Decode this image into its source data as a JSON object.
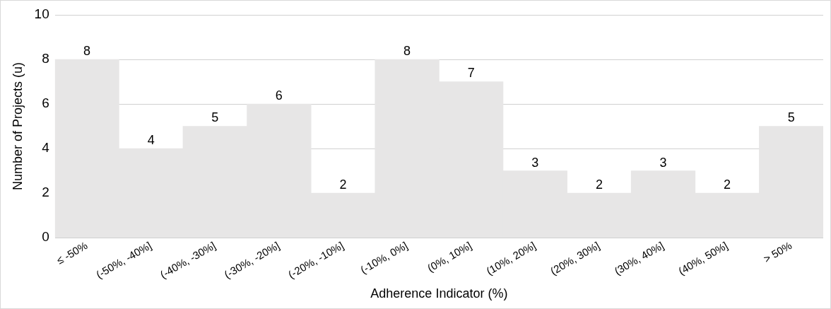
{
  "chart_data": {
    "type": "bar",
    "xlabel": "Adherence Indicator (%)",
    "ylabel": "Number of Projects (u)",
    "categories": [
      "≤ -50%",
      "(-50%, -40%]",
      "(-40%, -30%]",
      "(-30%, -20%]",
      "(-20%, -10%]",
      "(-10%, 0%]",
      "(0%, 10%]",
      "(10%, 20%]",
      "(20%, 30%]",
      "(30%, 40%]",
      "(40%, 50%]",
      "> 50%"
    ],
    "values": [
      8,
      4,
      5,
      6,
      2,
      8,
      7,
      3,
      2,
      3,
      2,
      5
    ],
    "color": "#e7e6e6",
    "ylim": [
      0,
      10
    ],
    "yticks": [
      0,
      2,
      4,
      6,
      8,
      10
    ],
    "grid": "y",
    "data_labels": true,
    "legend": false
  }
}
